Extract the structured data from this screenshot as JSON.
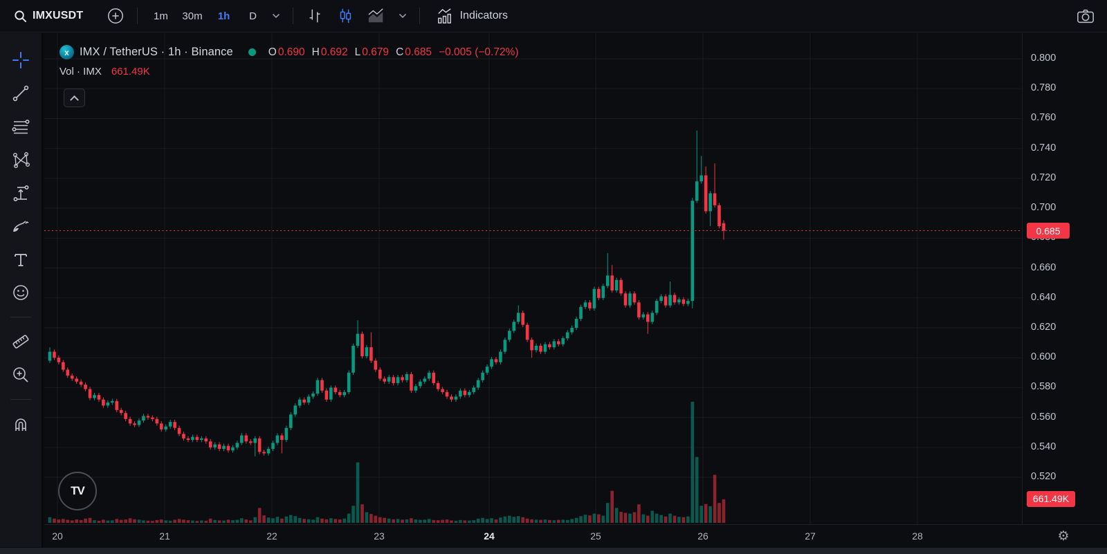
{
  "toolbar": {
    "symbol": "IMXUSDT",
    "intervals": [
      {
        "label": "1m",
        "active": false
      },
      {
        "label": "30m",
        "active": false
      },
      {
        "label": "1h",
        "active": true
      },
      {
        "label": "D",
        "active": false
      }
    ],
    "indicators_label": "Indicators"
  },
  "sidebar": {
    "active_tool": "crosshair",
    "tools": [
      "crosshair",
      "trend-line",
      "fib-retracement",
      "xabcd-pattern",
      "long-position",
      "brush",
      "text",
      "emoji",
      "measure",
      "zoom-in",
      "magnet"
    ]
  },
  "legend": {
    "symbol_title": "IMX / TetherUS · 1h · Binance",
    "o_label": "O",
    "o_value": "0.690",
    "h_label": "H",
    "h_value": "0.692",
    "l_label": "L",
    "l_value": "0.679",
    "c_label": "C",
    "c_value": "0.685",
    "change": "−0.005 (−0.72%)",
    "volume_label": "Vol · IMX",
    "volume_value": "661.49K"
  },
  "price_axis": {
    "labels": [
      "0.800",
      "0.780",
      "0.760",
      "0.740",
      "0.720",
      "0.700",
      "0.680",
      "0.660",
      "0.640",
      "0.620",
      "0.600",
      "0.580",
      "0.560",
      "0.540",
      "0.520"
    ],
    "last_price_label": "0.685",
    "volume_badge": "661.49K"
  },
  "time_axis": {
    "labels": [
      "20",
      "21",
      "22",
      "23",
      "24",
      "25",
      "26",
      "27",
      "28"
    ],
    "emphasized": "24"
  },
  "branding": {
    "watermark": "TV"
  },
  "colors": {
    "up": "#089981",
    "down": "#f23645",
    "accent": "#3f7bf6",
    "badge": "#f23645",
    "text": "#d1d4dc",
    "muted": "#9598a1",
    "axis_text": "#c3c6cf",
    "grid": "rgba(255,255,255,0.055)",
    "background": "#0c0d11"
  },
  "chart_data": {
    "type": "candlestick",
    "symbol": "IMX/USDT",
    "exchange": "Binance",
    "interval": "1h",
    "x_axis_days": [
      20,
      21,
      22,
      23,
      24,
      25,
      26,
      27,
      28
    ],
    "price_axis_range": [
      0.505,
      0.817
    ],
    "last": {
      "open": 0.69,
      "high": 0.692,
      "low": 0.679,
      "close": 0.685,
      "change": -0.005,
      "change_pct": -0.72,
      "volume_k": 661.49
    },
    "first_open": 0.598,
    "closes": [
      0.604,
      0.6,
      0.597,
      0.592,
      0.588,
      0.586,
      0.584,
      0.582,
      0.579,
      0.573,
      0.575,
      0.572,
      0.568,
      0.57,
      0.571,
      0.565,
      0.563,
      0.559,
      0.556,
      0.555,
      0.558,
      0.561,
      0.56,
      0.559,
      0.556,
      0.552,
      0.554,
      0.557,
      0.553,
      0.549,
      0.546,
      0.545,
      0.547,
      0.545,
      0.546,
      0.544,
      0.54,
      0.542,
      0.539,
      0.541,
      0.538,
      0.54,
      0.543,
      0.548,
      0.544,
      0.543,
      0.546,
      0.537,
      0.536,
      0.539,
      0.543,
      0.548,
      0.545,
      0.553,
      0.562,
      0.568,
      0.572,
      0.57,
      0.574,
      0.576,
      0.585,
      0.578,
      0.572,
      0.58,
      0.577,
      0.575,
      0.577,
      0.59,
      0.608,
      0.616,
      0.601,
      0.607,
      0.598,
      0.592,
      0.586,
      0.584,
      0.587,
      0.583,
      0.587,
      0.585,
      0.589,
      0.578,
      0.581,
      0.584,
      0.586,
      0.59,
      0.583,
      0.579,
      0.577,
      0.574,
      0.572,
      0.574,
      0.578,
      0.575,
      0.577,
      0.58,
      0.585,
      0.59,
      0.594,
      0.599,
      0.597,
      0.604,
      0.612,
      0.618,
      0.624,
      0.63,
      0.622,
      0.612,
      0.605,
      0.608,
      0.604,
      0.609,
      0.607,
      0.611,
      0.609,
      0.613,
      0.617,
      0.62,
      0.626,
      0.634,
      0.637,
      0.633,
      0.646,
      0.64,
      0.648,
      0.655,
      0.645,
      0.652,
      0.643,
      0.635,
      0.643,
      0.637,
      0.627,
      0.629,
      0.624,
      0.63,
      0.638,
      0.641,
      0.635,
      0.642,
      0.637,
      0.639,
      0.636,
      0.638,
      0.705,
      0.718,
      0.722,
      0.698,
      0.71,
      0.702,
      0.688,
      0.685
    ],
    "volumes_k": [
      160,
      120,
      95,
      110,
      85,
      70,
      95,
      80,
      120,
      140,
      75,
      60,
      90,
      65,
      70,
      110,
      85,
      95,
      130,
      100,
      90,
      70,
      60,
      55,
      80,
      95,
      70,
      60,
      85,
      110,
      90,
      75,
      65,
      55,
      70,
      60,
      120,
      80,
      70,
      65,
      90,
      75,
      85,
      130,
      95,
      70,
      160,
      420,
      210,
      150,
      130,
      170,
      120,
      180,
      220,
      190,
      140,
      110,
      100,
      90,
      160,
      120,
      100,
      130,
      110,
      95,
      120,
      260,
      480,
      1700,
      520,
      300,
      250,
      200,
      160,
      140,
      120,
      100,
      110,
      90,
      100,
      130,
      95,
      85,
      90,
      110,
      80,
      75,
      85,
      95,
      70,
      60,
      80,
      70,
      65,
      75,
      120,
      140,
      110,
      130,
      95,
      150,
      180,
      200,
      170,
      190,
      160,
      120,
      100,
      90,
      85,
      95,
      80,
      75,
      85,
      90,
      80,
      110,
      140,
      190,
      230,
      210,
      260,
      240,
      200,
      560,
      900,
      420,
      310,
      280,
      260,
      300,
      520,
      240,
      200,
      340,
      260,
      220,
      180,
      260,
      200,
      170,
      160,
      180,
      3400,
      1850,
      480,
      530,
      470,
      1350,
      560,
      661.49
    ],
    "open_overrides": {
      "151": 0.69
    },
    "wick_overrides": {
      "0": {
        "h": 0.607
      },
      "46": {
        "l": 0.534
      },
      "52": {
        "l": 0.536
      },
      "69": {
        "h": 0.625
      },
      "72": {
        "h": 0.617
      },
      "105": {
        "h": 0.635
      },
      "108": {
        "l": 0.6
      },
      "125": {
        "h": 0.67
      },
      "126": {
        "h": 0.662
      },
      "134": {
        "l": 0.616
      },
      "139": {
        "h": 0.651
      },
      "144": {
        "h": 0.707,
        "l": 0.633
      },
      "145": {
        "h": 0.752
      },
      "146": {
        "h": 0.735
      },
      "147": {
        "h": 0.728
      },
      "148": {
        "l": 0.688
      },
      "149": {
        "h": 0.73
      },
      "151": {
        "h": 0.692,
        "l": 0.679
      }
    }
  }
}
